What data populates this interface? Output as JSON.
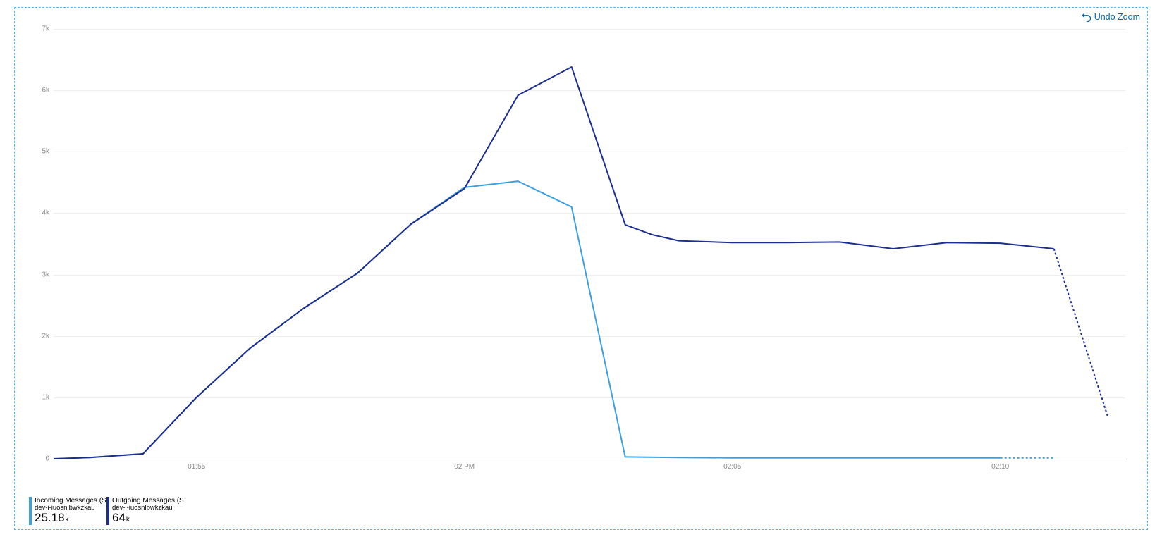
{
  "container": {
    "border_color": "#4db8ff",
    "border_style": "dashed",
    "background_color": "#ffffff"
  },
  "undo_zoom": {
    "label": "Undo Zoom",
    "color": "#0062ad"
  },
  "chart": {
    "type": "line",
    "x_domain_minutes": [
      112.333,
      132.333
    ],
    "ylim": [
      0,
      7000
    ],
    "y_ticks": [
      0,
      1000,
      2000,
      3000,
      4000,
      5000,
      6000,
      7000
    ],
    "y_tick_labels": [
      "0",
      "1k",
      "2k",
      "3k",
      "4k",
      "5k",
      "6k",
      "7k"
    ],
    "x_ticks_min": [
      115,
      120,
      125,
      130
    ],
    "x_tick_labels": [
      "01:55",
      "02 PM",
      "02:05",
      "02:10"
    ],
    "grid_color": "#eeeeee",
    "axis_color": "#999999",
    "tick_font_size": 10,
    "tick_color": "#888888",
    "line_width": 2,
    "series": [
      {
        "id": "incoming",
        "label": "Incoming Messages (Sum)",
        "resource": "dev-i-iuosnlbwkzkau",
        "total_value": "25.18",
        "total_unit": "k",
        "color": "#3aa0e0",
        "points": [
          [
            112.333,
            0
          ],
          [
            113,
            20
          ],
          [
            114,
            80
          ],
          [
            115,
            1000
          ],
          [
            116,
            1800
          ],
          [
            117,
            2450
          ],
          [
            118,
            3020
          ],
          [
            119,
            3820
          ],
          [
            120,
            4420
          ],
          [
            121,
            4520
          ],
          [
            122,
            4100
          ],
          [
            123,
            30
          ],
          [
            124,
            20
          ],
          [
            125,
            15
          ],
          [
            126,
            15
          ],
          [
            127,
            15
          ],
          [
            128,
            15
          ],
          [
            129,
            15
          ],
          [
            130,
            15
          ],
          [
            131,
            15
          ]
        ],
        "dashed_last": true
      },
      {
        "id": "outgoing",
        "label": "Outgoing Messages (Sum)",
        "resource": "dev-i-iuosnlbwkzkau",
        "total_value": "64",
        "total_unit": "k",
        "color": "#1c2e8f",
        "points": [
          [
            112.333,
            0
          ],
          [
            113,
            20
          ],
          [
            114,
            80
          ],
          [
            115,
            1000
          ],
          [
            116,
            1800
          ],
          [
            117,
            2450
          ],
          [
            118,
            3020
          ],
          [
            119,
            3820
          ],
          [
            120,
            4400
          ],
          [
            121,
            5920
          ],
          [
            122,
            6380
          ],
          [
            123,
            3810
          ],
          [
            123.5,
            3650
          ],
          [
            124,
            3550
          ],
          [
            125,
            3520
          ],
          [
            126,
            3520
          ],
          [
            127,
            3530
          ],
          [
            128,
            3420
          ],
          [
            129,
            3520
          ],
          [
            130,
            3510
          ],
          [
            131,
            3420
          ],
          [
            132,
            700
          ]
        ],
        "dashed_last": true
      }
    ]
  }
}
